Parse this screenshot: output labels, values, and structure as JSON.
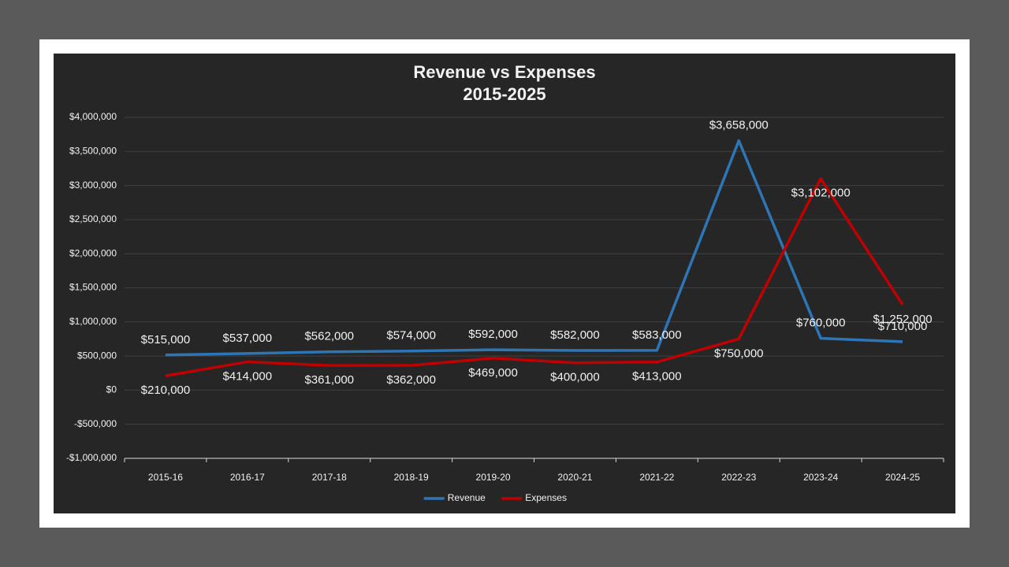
{
  "chart_data": {
    "type": "line",
    "title": "Revenue vs Expenses",
    "subtitle": "2015-2025",
    "categories": [
      "2015-16",
      "2016-17",
      "2017-18",
      "2018-19",
      "2019-20",
      "2020-21",
      "2021-22",
      "2022-23",
      "2023-24",
      "2024-25"
    ],
    "series": [
      {
        "name": "Revenue",
        "color": "#2e75b6",
        "values": [
          515000,
          537000,
          562000,
          574000,
          592000,
          582000,
          583000,
          3658000,
          760000,
          710000
        ],
        "value_labels": [
          "$515,000",
          "$537,000",
          "$562,000",
          "$574,000",
          "$592,000",
          "$582,000",
          "$583,000",
          "$3,658,000",
          "$760,000",
          "$710,000"
        ]
      },
      {
        "name": "Expenses",
        "color": "#c00000",
        "values": [
          210000,
          414000,
          361000,
          362000,
          469000,
          400000,
          413000,
          750000,
          3102000,
          1252000
        ],
        "value_labels": [
          "$210,000",
          "$414,000",
          "$361,000",
          "$362,000",
          "$469,000",
          "$400,000",
          "$413,000",
          "$750,000",
          "$3,102,000",
          "$1,252,000"
        ]
      }
    ],
    "ylim": [
      -1000000,
      4000000
    ],
    "yticks": [
      {
        "value": -1000000,
        "label": "-$1,000,000"
      },
      {
        "value": -500000,
        "label": "-$500,000"
      },
      {
        "value": 0,
        "label": "$0"
      },
      {
        "value": 500000,
        "label": "$500,000"
      },
      {
        "value": 1000000,
        "label": "$1,000,000"
      },
      {
        "value": 1500000,
        "label": "$1,500,000"
      },
      {
        "value": 2000000,
        "label": "$2,000,000"
      },
      {
        "value": 2500000,
        "label": "$2,500,000"
      },
      {
        "value": 3000000,
        "label": "$3,000,000"
      },
      {
        "value": 3500000,
        "label": "$3,500,000"
      },
      {
        "value": 4000000,
        "label": "$4,000,000"
      }
    ],
    "grid": true,
    "legend": "bottom"
  }
}
